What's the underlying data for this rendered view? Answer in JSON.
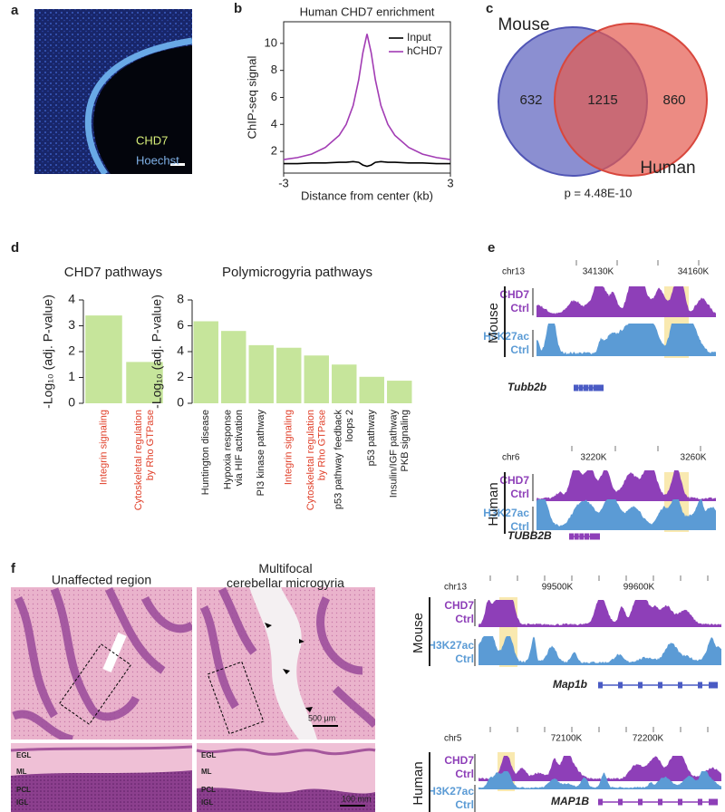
{
  "panel_labels": [
    "a",
    "b",
    "c",
    "d",
    "e",
    "f"
  ],
  "panel_a": {
    "labels": [
      "CHD7",
      "Hoechst"
    ]
  },
  "chart_data": [
    {
      "type": "line",
      "title": "Human CHD7 enrichment",
      "x_label": "Distance from center (kb)",
      "y_label": "ChIP-seq signal",
      "x": [
        -3,
        -2.5,
        -2,
        -1.5,
        -1,
        -0.75,
        -0.5,
        -0.3,
        -0.15,
        0,
        0.15,
        0.3,
        0.5,
        0.75,
        1,
        1.5,
        2,
        2.5,
        3
      ],
      "xlim": [
        -3,
        3
      ],
      "xticks": [
        -3,
        3
      ],
      "ylim": [
        0.4,
        11.6
      ],
      "yticks": [
        2,
        4,
        6,
        8,
        10
      ],
      "legend": "upper right",
      "series": [
        {
          "name": "Input",
          "color": "#000000",
          "values": [
            1.1,
            1.1,
            1.15,
            1.15,
            1.2,
            1.2,
            1.25,
            1.2,
            1.0,
            0.9,
            1.0,
            1.2,
            1.25,
            1.2,
            1.2,
            1.15,
            1.15,
            1.1,
            1.1
          ]
        },
        {
          "name": "hCHD7",
          "color": "#a23cb4",
          "values": [
            1.4,
            1.55,
            1.8,
            2.3,
            3.2,
            4.0,
            5.4,
            7.3,
            9.3,
            10.7,
            9.3,
            7.3,
            5.4,
            4.0,
            3.2,
            2.3,
            1.8,
            1.55,
            1.4
          ]
        }
      ]
    },
    {
      "type": "bar",
      "title": "CHD7 pathways",
      "y_label": "-Log₁₀ (adj. P-value)",
      "categories": [
        "Integrin signaling",
        "Cytoskeletal regulation\nby Rho GTPase"
      ],
      "values": [
        3.4,
        1.6
      ],
      "color": "#c6e59b",
      "label_colors": [
        "#e0402a",
        "#e0402a"
      ],
      "ylim": [
        0,
        4
      ],
      "yticks": [
        0,
        1,
        2,
        3,
        4
      ]
    },
    {
      "type": "bar",
      "title": "Polymicrogyria pathways",
      "y_label": "-Log₁₀ (adj. P-value)",
      "categories": [
        "Huntington disease",
        "Hypoxia response\nvia HIF activation",
        "PI3 kinase pathway",
        "Integrin signaling",
        "Cytoskeletal regulation\nby Rho GTPase",
        "p53 pathway feedback\nloops 2",
        "p53 pathway",
        "Insulin/IGF pathway\nPKB signaling"
      ],
      "values": [
        6.35,
        5.6,
        4.5,
        4.3,
        3.7,
        3.0,
        2.05,
        1.75
      ],
      "color": "#c6e59b",
      "label_colors": [
        "#222222",
        "#222222",
        "#222222",
        "#e0402a",
        "#e0402a",
        "#222222",
        "#222222",
        "#222222"
      ],
      "ylim": [
        0,
        8
      ],
      "yticks": [
        0,
        2,
        4,
        6,
        8
      ]
    }
  ],
  "venn": {
    "sets": [
      "Mouse",
      "Human"
    ],
    "counts": [
      632,
      1215,
      860
    ],
    "p_value": "p = 4.48E-10"
  },
  "panel_e": [
    {
      "species": "Mouse",
      "chrom": "chr13",
      "ticks": [
        "34130K",
        "34160K"
      ],
      "rows": [
        [
          "CHD7",
          "Ctrl"
        ],
        [
          "H3K27ac",
          "Ctrl"
        ]
      ],
      "gene": "Tubb2b"
    },
    {
      "species": "Human",
      "chrom": "chr6",
      "ticks": [
        "3220K",
        "3260K"
      ],
      "rows": [
        [
          "CHD7",
          "Ctrl"
        ],
        [
          "H3K27ac",
          "Ctrl"
        ]
      ],
      "gene": "TUBB2B"
    }
  ],
  "panel_f": {
    "titles": [
      "Unaffected region",
      "Multifocal\ncerebellar microgyria"
    ],
    "layers": [
      "EGL",
      "ML",
      "PCL",
      "IGL"
    ],
    "scale_bars": [
      "500 µm",
      "100 mm"
    ],
    "tracks": [
      {
        "species": "Mouse",
        "chrom": "chr13",
        "ticks": [
          "99500K",
          "99600K"
        ],
        "rows": [
          [
            "CHD7",
            "Ctrl"
          ],
          [
            "H3K27ac",
            "Ctrl"
          ]
        ],
        "gene": "Map1b"
      },
      {
        "species": "Human",
        "chrom": "chr5",
        "ticks": [
          "72100K",
          "72200K"
        ],
        "rows": [
          [
            "CHD7",
            "Ctrl"
          ],
          [
            "H3K27ac",
            "Ctrl"
          ]
        ],
        "gene": "MAP1B"
      }
    ]
  }
}
